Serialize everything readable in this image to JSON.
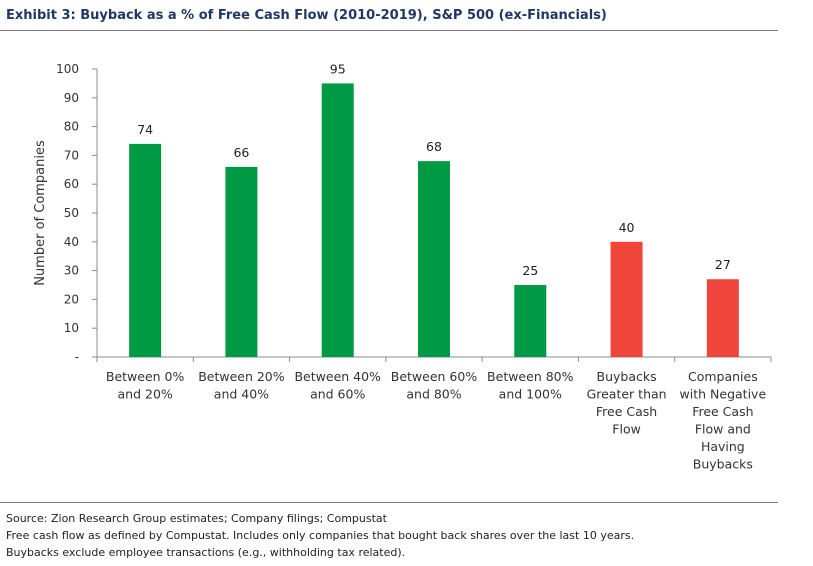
{
  "title": "Exhibit 3: Buyback as a % of Free Cash Flow (2010-2019), S&P 500 (ex-Financials)",
  "footer": {
    "source": "Source: Zion Research Group estimates; Company filings; Compustat",
    "note1": "Free cash flow as defined by Compustat. Includes only companies that bought back shares over the last 10 years.",
    "note2": "Buybacks exclude employee transactions (e.g., withholding tax related)."
  },
  "colors": {
    "green": "#009a44",
    "red": "#f0453a"
  },
  "chart_data": {
    "type": "bar",
    "ylabel": "Number of Companies",
    "ylim": [
      0,
      100
    ],
    "yticks": [
      "-",
      "10",
      "20",
      "30",
      "40",
      "50",
      "60",
      "70",
      "80",
      "90",
      "100"
    ],
    "grid": false,
    "categories": [
      [
        "Between 0%",
        "and 20%"
      ],
      [
        "Between 20%",
        "and 40%"
      ],
      [
        "Between 40%",
        "and 60%"
      ],
      [
        "Between 60%",
        "and 80%"
      ],
      [
        "Between 80%",
        "and 100%"
      ],
      [
        "Buybacks",
        "Greater than",
        "Free Cash",
        "Flow"
      ],
      [
        "Companies",
        "with Negative",
        "Free Cash",
        "Flow and",
        "Having",
        "Buybacks"
      ]
    ],
    "values": [
      74,
      66,
      95,
      68,
      25,
      40,
      27
    ],
    "data_labels": [
      "74",
      "66",
      "95",
      "68",
      "25",
      "40",
      "27"
    ],
    "bar_colors": [
      "green",
      "green",
      "green",
      "green",
      "green",
      "red",
      "red"
    ]
  }
}
